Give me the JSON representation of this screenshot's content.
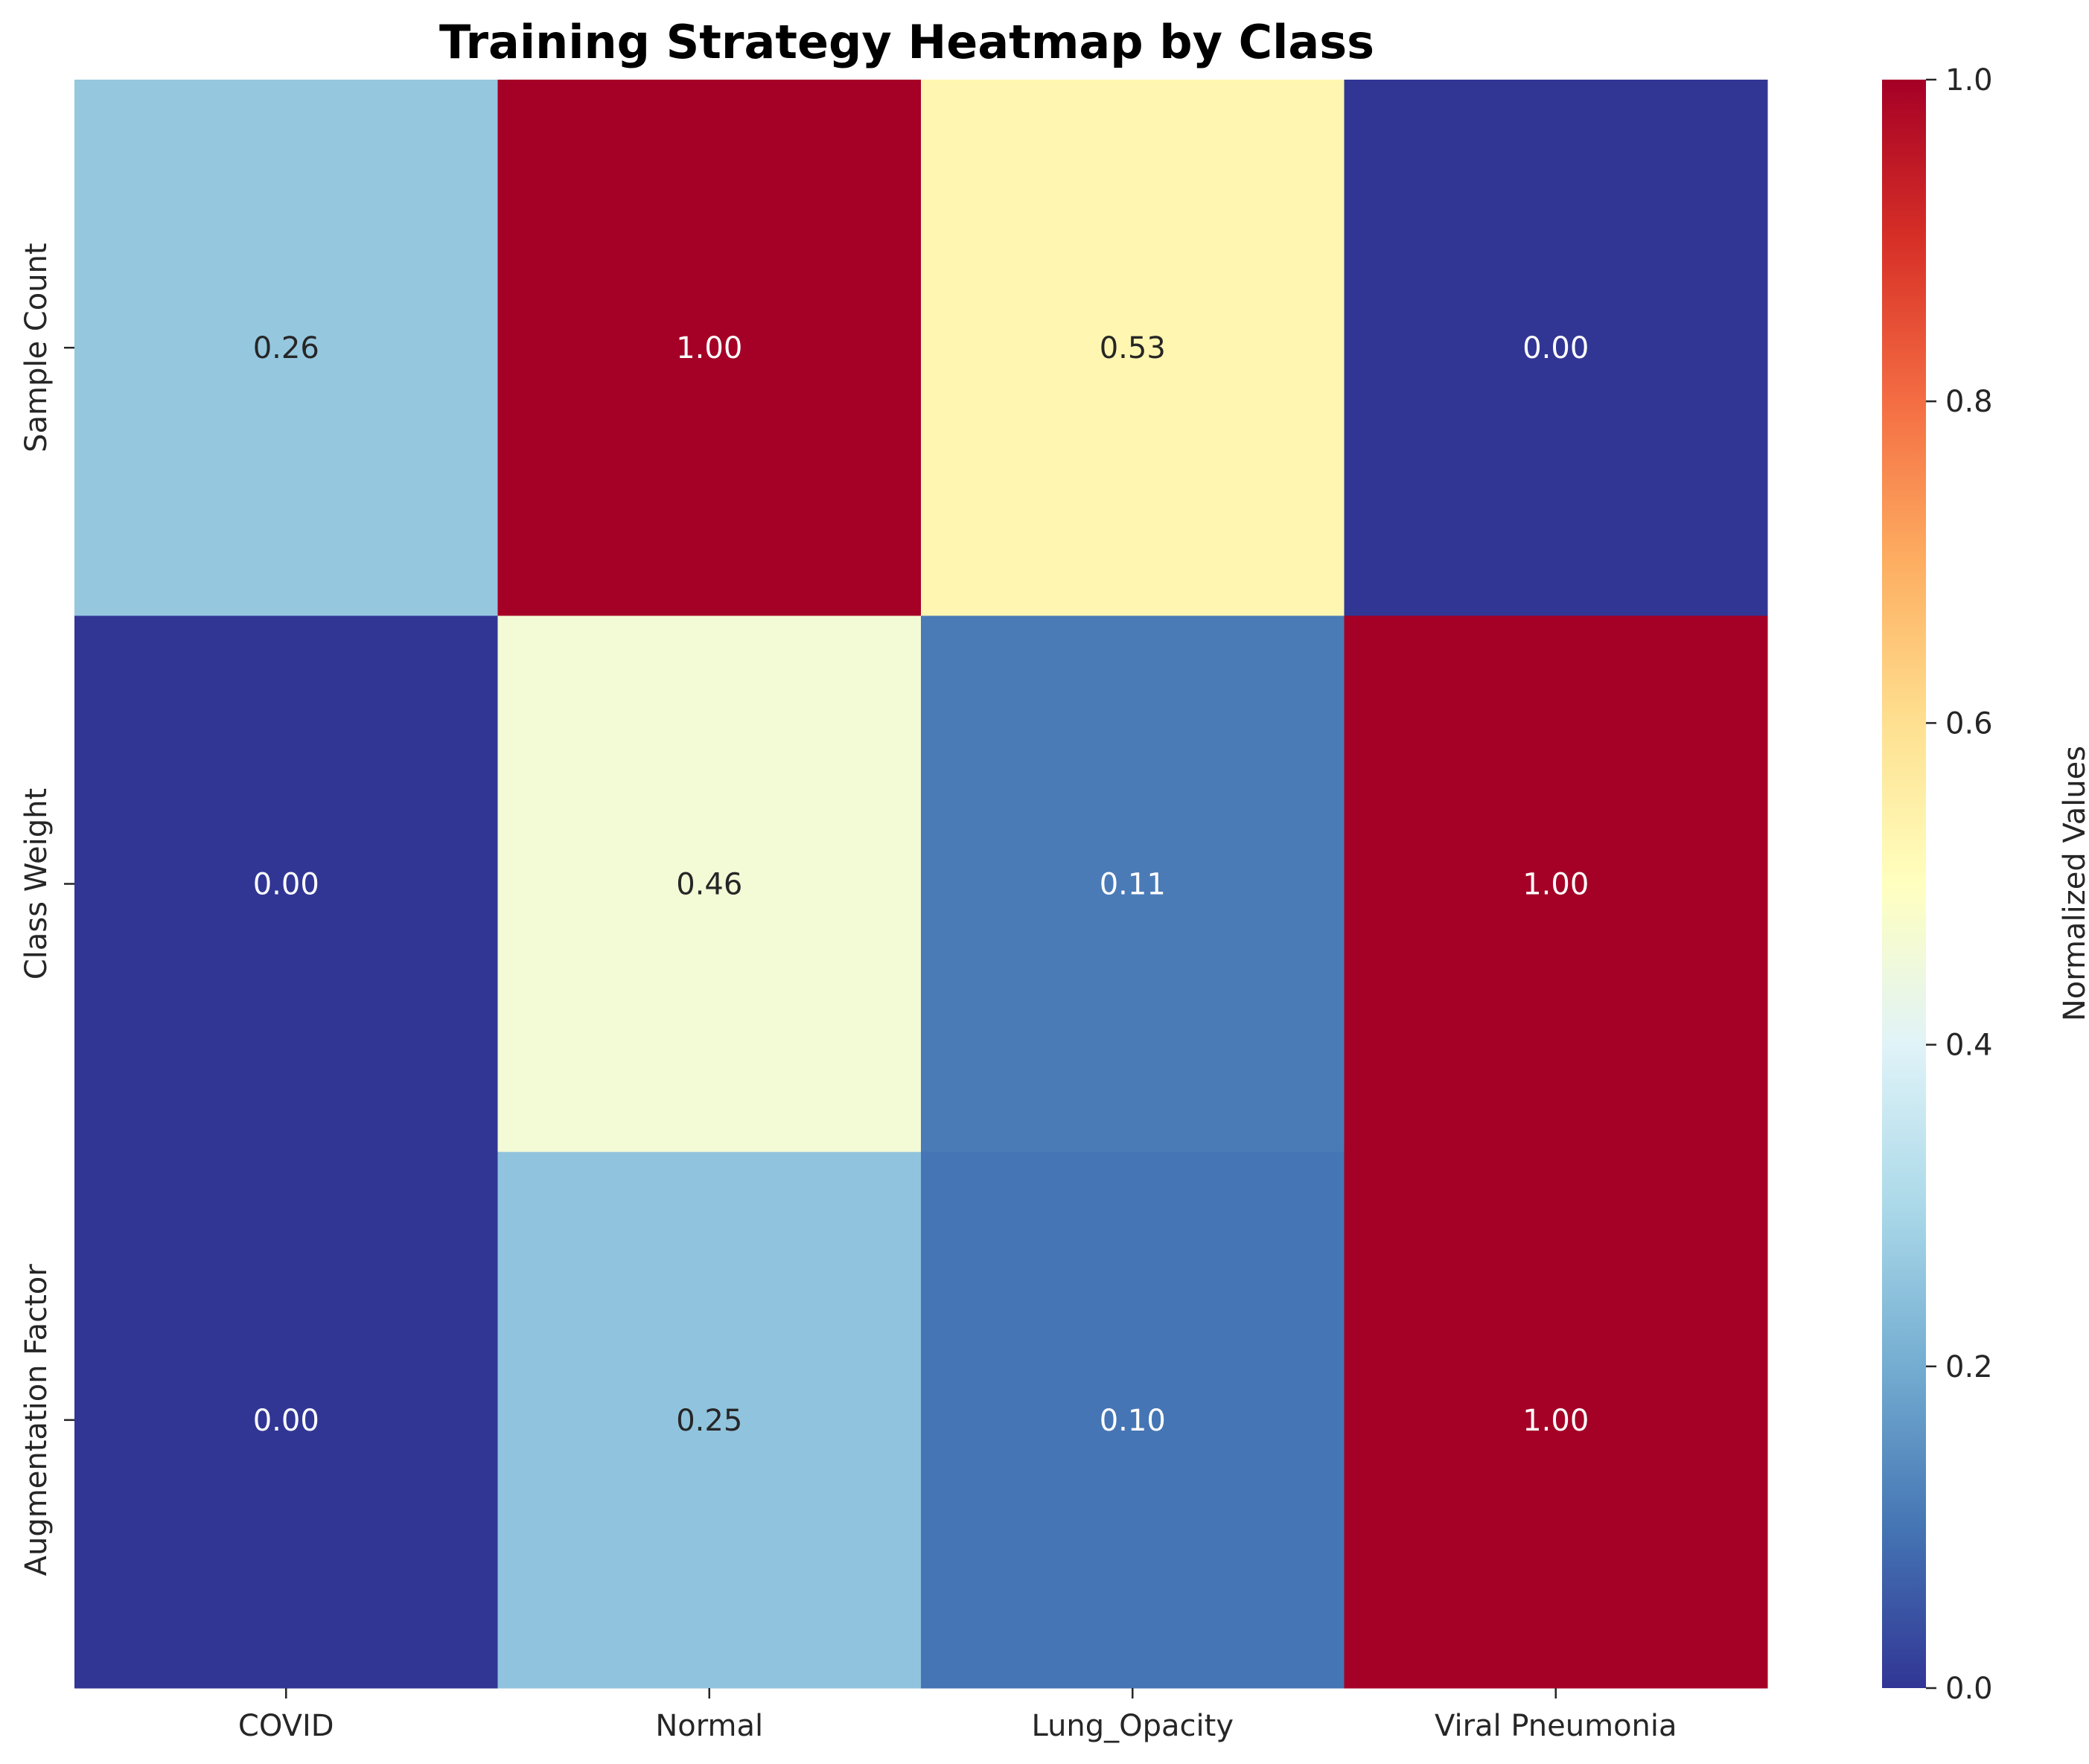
{
  "chart_data": {
    "type": "heatmap",
    "title": "Training Strategy Heatmap by Class",
    "xlabel": "",
    "ylabel": "",
    "x_categories": [
      "COVID",
      "Normal",
      "Lung_Opacity",
      "Viral Pneumonia"
    ],
    "y_categories": [
      "Sample Count",
      "Class Weight",
      "Augmentation Factor"
    ],
    "values": [
      [
        0.26,
        1.0,
        0.53,
        0.0
      ],
      [
        0.0,
        0.46,
        0.11,
        1.0
      ],
      [
        0.0,
        0.25,
        0.1,
        1.0
      ]
    ],
    "value_format": "2 decimals",
    "colormap": "RdYlBu_r",
    "colorbar": {
      "label": "Normalized Values",
      "range": [
        0,
        1
      ],
      "ticks": [
        0.0,
        0.2,
        0.4,
        0.6,
        0.8,
        1.0
      ],
      "tick_labels": [
        "0.0",
        "0.2",
        "0.4",
        "0.6",
        "0.8",
        "1.0"
      ]
    },
    "grid": false,
    "colors": {
      "low": "#313695",
      "mid": "#ffffbf",
      "high": "#a50026"
    }
  }
}
